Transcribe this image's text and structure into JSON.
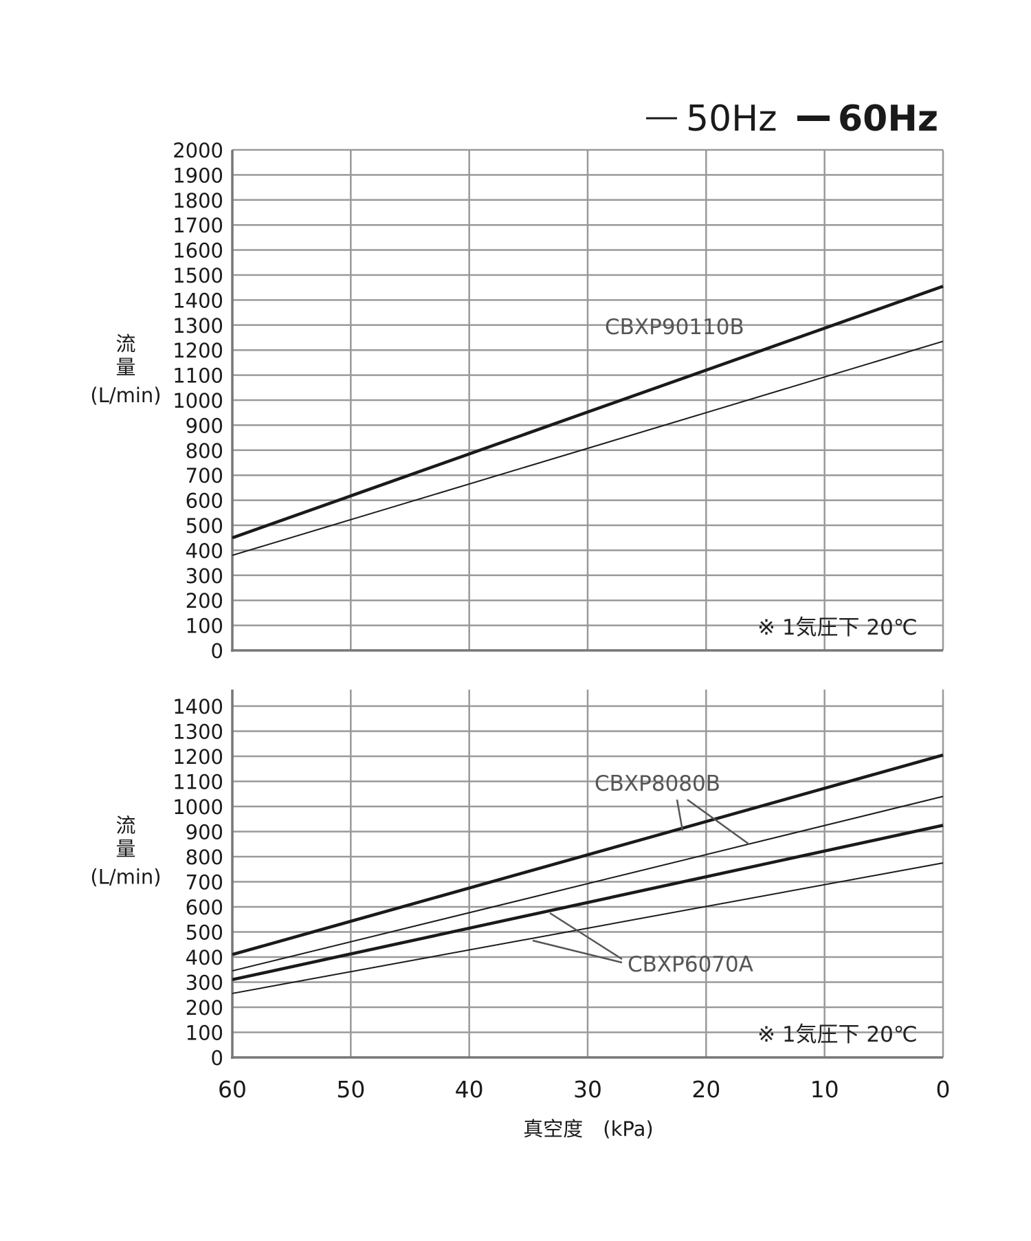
{
  "legend": {
    "thin_label": "50Hz",
    "bold_label": "60Hz"
  },
  "chart_data": [
    {
      "type": "line",
      "xlabel": "真空度　(kPa)",
      "ylabel": [
        "流",
        "量",
        "(L/min)"
      ],
      "x_ticks": [
        60,
        50,
        40,
        30,
        20,
        10,
        0
      ],
      "xlim": [
        60,
        0
      ],
      "ylim": [
        0,
        2000
      ],
      "y_ticks": [
        0,
        100,
        200,
        300,
        400,
        500,
        600,
        700,
        800,
        900,
        1000,
        1100,
        1200,
        1300,
        1400,
        1500,
        1600,
        1700,
        1800,
        1900,
        2000
      ],
      "grid": true,
      "note": "※ 1気圧下 20℃",
      "annotations": [
        "CBXP90110B"
      ],
      "series": [
        {
          "model": "CBXP90110B",
          "freq": "60Hz",
          "weight": "bold",
          "x": [
            60,
            0
          ],
          "y": [
            450,
            1455
          ]
        },
        {
          "model": "CBXP90110B",
          "freq": "50Hz",
          "weight": "thin",
          "x": [
            60,
            0
          ],
          "y": [
            380,
            1235
          ]
        }
      ]
    },
    {
      "type": "line",
      "xlabel": "真空度　(kPa)",
      "ylabel": [
        "流",
        "量",
        "(L/min)"
      ],
      "x_ticks": [
        60,
        50,
        40,
        30,
        20,
        10,
        0
      ],
      "xlim": [
        60,
        0
      ],
      "ylim": [
        0,
        1400
      ],
      "y_ticks": [
        0,
        100,
        200,
        300,
        400,
        500,
        600,
        700,
        800,
        900,
        1000,
        1100,
        1200,
        1300,
        1400
      ],
      "grid": true,
      "note": "※ 1気圧下 20℃",
      "annotations": [
        "CBXP8080B",
        "CBXP6070A"
      ],
      "series": [
        {
          "model": "CBXP8080B",
          "freq": "60Hz",
          "weight": "bold",
          "x": [
            60,
            0
          ],
          "y": [
            410,
            1205
          ]
        },
        {
          "model": "CBXP8080B",
          "freq": "50Hz",
          "weight": "thin",
          "x": [
            60,
            0
          ],
          "y": [
            345,
            1040
          ]
        },
        {
          "model": "CBXP6070A",
          "freq": "60Hz",
          "weight": "bold",
          "x": [
            60,
            0
          ],
          "y": [
            310,
            925
          ]
        },
        {
          "model": "CBXP6070A",
          "freq": "50Hz",
          "weight": "thin",
          "x": [
            60,
            0
          ],
          "y": [
            255,
            775
          ]
        }
      ]
    }
  ]
}
